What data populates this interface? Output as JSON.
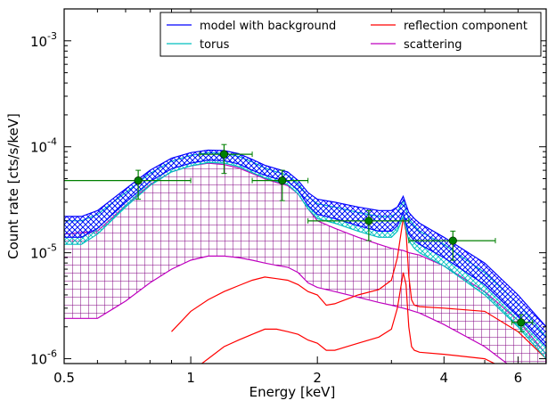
{
  "chart_data": {
    "type": "line",
    "x_scale": "log",
    "y_scale": "log",
    "xlim": [
      0.5,
      7.0
    ],
    "ylim": [
      9e-07,
      0.002
    ],
    "xlabel": "Energy [keV]",
    "ylabel": "Count rate [cts/s/keV]",
    "x_ticks": [
      {
        "value": 0.5,
        "label": "0.5"
      },
      {
        "value": 1,
        "label": "1"
      },
      {
        "value": 2,
        "label": "2"
      },
      {
        "value": 4,
        "label": "4"
      },
      {
        "value": 6,
        "label": "6"
      }
    ],
    "y_ticks": [
      {
        "value": 1e-06,
        "base": "10",
        "exp": "-6"
      },
      {
        "value": 1e-05,
        "base": "10",
        "exp": "-5"
      },
      {
        "value": 0.0001,
        "base": "10",
        "exp": "-4"
      },
      {
        "value": 0.001,
        "base": "10",
        "exp": "-3"
      }
    ],
    "legend": {
      "position": "top-right",
      "entries": [
        {
          "label": "model with background",
          "color": "#0000ff"
        },
        {
          "label": "reflection component",
          "color": "#ff0000"
        },
        {
          "label": "torus",
          "color": "#00bfbf"
        },
        {
          "label": "scattering",
          "color": "#bf00bf"
        }
      ]
    },
    "series": [
      {
        "name": "model with background",
        "color": "#0000ff",
        "x": [
          0.5,
          0.55,
          0.6,
          0.7,
          0.8,
          0.9,
          1.0,
          1.1,
          1.2,
          1.3,
          1.4,
          1.5,
          1.6,
          1.7,
          1.8,
          1.9,
          2.0,
          2.2,
          2.5,
          2.8,
          3.0,
          3.1,
          3.2,
          3.3,
          3.4,
          3.5,
          4.0,
          5.0,
          6.0,
          7.0
        ],
        "upper": [
          2.2e-05,
          2.2e-05,
          2.5e-05,
          4e-05,
          6e-05,
          7.8e-05,
          8.8e-05,
          9.3e-05,
          9.2e-05,
          8.6e-05,
          7.6e-05,
          6.7e-05,
          6.2e-05,
          5.8e-05,
          4.8e-05,
          3.7e-05,
          3.2e-05,
          3e-05,
          2.7e-05,
          2.5e-05,
          2.5e-05,
          2.7e-05,
          3.4e-05,
          2.4e-05,
          2.1e-05,
          1.9e-05,
          1.4e-05,
          8e-06,
          4e-06,
          2e-06
        ],
        "lower": [
          1.4e-05,
          1.4e-05,
          1.7e-05,
          3e-05,
          4.7e-05,
          6.2e-05,
          7e-05,
          7.5e-05,
          7.4e-05,
          6.9e-05,
          6e-05,
          5.4e-05,
          5e-05,
          4.7e-05,
          3.9e-05,
          2.8e-05,
          2.3e-05,
          2.1e-05,
          1.8e-05,
          1.6e-05,
          1.6e-05,
          1.8e-05,
          2.4e-05,
          1.5e-05,
          1.3e-05,
          1.2e-05,
          9e-06,
          5e-06,
          2.5e-06,
          1.3e-06
        ]
      },
      {
        "name": "torus",
        "color": "#00bfbf",
        "x": [
          0.5,
          0.55,
          0.6,
          0.7,
          0.8,
          0.9,
          1.0,
          1.1,
          1.2,
          1.3,
          1.4,
          1.5,
          1.6,
          1.7,
          1.8,
          1.9,
          2.0,
          2.2,
          2.5,
          2.8,
          3.0,
          3.1,
          3.2,
          3.3,
          3.4,
          3.5,
          4.0,
          5.0,
          6.0,
          7.0
        ],
        "upper": [
          2e-05,
          2e-05,
          2.3e-05,
          3.7e-05,
          5.6e-05,
          7.3e-05,
          8.3e-05,
          8.8e-05,
          8.7e-05,
          8.1e-05,
          7.2e-05,
          6.3e-05,
          5.8e-05,
          5.4e-05,
          4.5e-05,
          3.4e-05,
          2.9e-05,
          2.7e-05,
          2.4e-05,
          2.2e-05,
          2.2e-05,
          2.4e-05,
          3.1e-05,
          2.1e-05,
          1.8e-05,
          1.6e-05,
          1.2e-05,
          6.5e-06,
          3.3e-06,
          1.6e-06
        ],
        "lower": [
          1.2e-05,
          1.2e-05,
          1.5e-05,
          2.7e-05,
          4.3e-05,
          5.8e-05,
          6.6e-05,
          7.1e-05,
          7e-05,
          6.5e-05,
          5.7e-05,
          5.1e-05,
          4.7e-05,
          4.4e-05,
          3.6e-05,
          2.6e-05,
          2.1e-05,
          1.9e-05,
          1.6e-05,
          1.4e-05,
          1.4e-05,
          1.6e-05,
          2.2e-05,
          1.3e-05,
          1.1e-05,
          1e-05,
          7.5e-06,
          4e-06,
          2e-06,
          1e-06
        ]
      },
      {
        "name": "scattering",
        "color": "#bf00bf",
        "x": [
          0.5,
          0.6,
          0.7,
          0.8,
          0.9,
          1.0,
          1.1,
          1.2,
          1.3,
          1.4,
          1.5,
          1.6,
          1.7,
          1.8,
          1.9,
          2.0,
          2.2,
          2.5,
          2.8,
          3.0,
          3.2,
          3.3,
          3.5,
          4.0,
          5.0,
          6.0,
          7.0
        ],
        "upper": [
          1.5e-05,
          1.6e-05,
          2.8e-05,
          4.4e-05,
          5.8e-05,
          6.6e-05,
          7e-05,
          6.8e-05,
          6.3e-05,
          5.6e-05,
          5e-05,
          4.6e-05,
          4.3e-05,
          3.6e-05,
          2.6e-05,
          2e-05,
          1.7e-05,
          1.4e-05,
          1.2e-05,
          1.1e-05,
          1.05e-05,
          1e-05,
          9.5e-06,
          7.5e-06,
          4.3e-06,
          2.3e-06,
          1.1e-06
        ],
        "lower": [
          2.4e-06,
          2.4e-06,
          3.5e-06,
          5.2e-06,
          7e-06,
          8.5e-06,
          9.3e-06,
          9.3e-06,
          9e-06,
          8.5e-06,
          8e-06,
          7.6e-06,
          7.3e-06,
          6.5e-06,
          5.2e-06,
          4.7e-06,
          4.3e-06,
          3.8e-06,
          3.4e-06,
          3.2e-06,
          3e-06,
          2.9e-06,
          2.7e-06,
          2.1e-06,
          1.3e-06,
          7.5e-07,
          4e-07
        ]
      },
      {
        "name": "reflection component",
        "color": "#ff0000",
        "x": [
          0.9,
          1.0,
          1.1,
          1.2,
          1.3,
          1.4,
          1.5,
          1.6,
          1.7,
          1.8,
          1.9,
          2.0,
          2.1,
          2.2,
          2.5,
          2.8,
          3.0,
          3.1,
          3.2,
          3.25,
          3.3,
          3.35,
          3.4,
          3.5,
          4.0,
          5.0,
          6.0,
          7.0
        ],
        "upper": [
          1.8e-06,
          2.8e-06,
          3.6e-06,
          4.3e-06,
          4.9e-06,
          5.5e-06,
          5.9e-06,
          5.7e-06,
          5.5e-06,
          5e-06,
          4.3e-06,
          4e-06,
          3.2e-06,
          3.3e-06,
          4e-06,
          4.5e-06,
          5.5e-06,
          9e-06,
          2.1e-05,
          1.6e-05,
          6e-06,
          3.6e-06,
          3.2e-06,
          3.1e-06,
          3e-06,
          2.8e-06,
          1.8e-06,
          1e-06
        ],
        "lower": [
          5e-07,
          7.5e-07,
          1e-06,
          1.3e-06,
          1.5e-06,
          1.7e-06,
          1.9e-06,
          1.9e-06,
          1.8e-06,
          1.7e-06,
          1.5e-06,
          1.4e-06,
          1.2e-06,
          1.2e-06,
          1.4e-06,
          1.6e-06,
          1.9e-06,
          3e-06,
          6.5e-06,
          5e-06,
          2e-06,
          1.3e-06,
          1.2e-06,
          1.15e-06,
          1.1e-06,
          1e-06,
          7e-07,
          4e-07
        ]
      }
    ],
    "data_points": [
      {
        "x": 0.75,
        "y": 4.8e-05,
        "xerr": [
          0.5,
          1.0
        ],
        "yerr": [
          3.2e-05,
          6e-05
        ]
      },
      {
        "x": 1.2,
        "y": 8.5e-05,
        "xerr": [
          1.05,
          1.4
        ],
        "yerr": [
          5.6e-05,
          0.000105
        ]
      },
      {
        "x": 1.65,
        "y": 4.8e-05,
        "xerr": [
          1.4,
          1.9
        ],
        "yerr": [
          3.1e-05,
          6e-05
        ]
      },
      {
        "x": 2.65,
        "y": 2e-05,
        "xerr": [
          1.9,
          3.3
        ],
        "yerr": [
          1.3e-05,
          2.5e-05
        ]
      },
      {
        "x": 4.2,
        "y": 1.3e-05,
        "xerr": [
          3.3,
          5.3
        ],
        "yerr": [
          8.5e-06,
          1.6e-05
        ]
      },
      {
        "x": 6.1,
        "y": 2.2e-06,
        "xerr": [
          5.8,
          6.5
        ],
        "yerr": [
          1.8e-06,
          2.6e-06
        ]
      }
    ],
    "grid": false
  }
}
